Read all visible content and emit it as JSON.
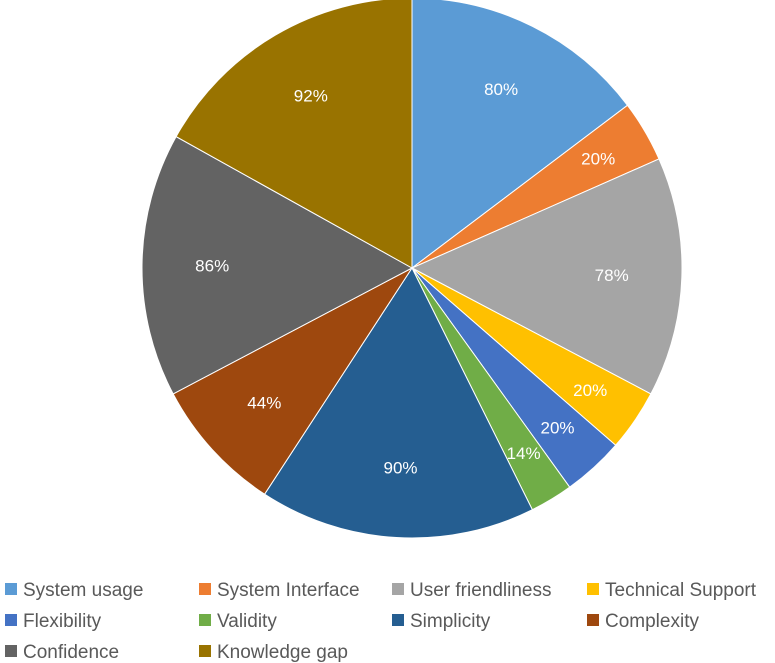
{
  "chart_data": {
    "type": "pie",
    "title": "",
    "series": [
      {
        "values": [
          80,
          20,
          78,
          20,
          20,
          14,
          90,
          44,
          86,
          92
        ],
        "labels": [
          "80%",
          "20%",
          "78%",
          "20%",
          "20%",
          "14%",
          "90%",
          "44%",
          "86%",
          "92%"
        ]
      }
    ],
    "categories": [
      "System usage",
      "System Interface",
      "User friendliness",
      "Technical Support",
      "Flexibility",
      "Validity",
      "Simplicity",
      "Complexity",
      "Confidence",
      "Knowledge gap"
    ],
    "colors": [
      "#5B9BD5",
      "#ED7D31",
      "#A5A5A5",
      "#FFC000",
      "#4472C4",
      "#70AD47",
      "#255E91",
      "#9E480E",
      "#636363",
      "#997300"
    ],
    "start_angle": "12 o'clock",
    "direction": "clockwise",
    "legend": {
      "position": "bottom"
    }
  }
}
